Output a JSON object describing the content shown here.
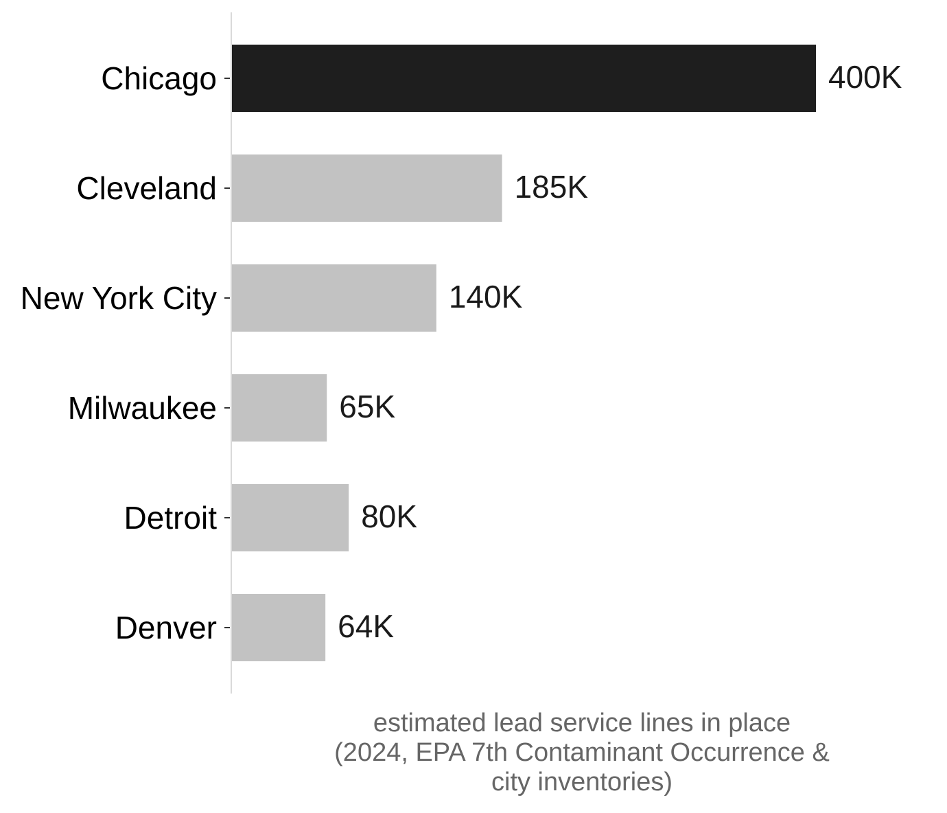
{
  "chart_data": {
    "type": "bar",
    "orientation": "horizontal",
    "categories": [
      "Chicago",
      "Cleveland",
      "New York City",
      "Milwaukee",
      "Detroit",
      "Denver"
    ],
    "values": [
      400000,
      185000,
      140000,
      65000,
      80000,
      64000
    ],
    "value_labels": [
      "400K",
      "185K",
      "140K",
      "65K",
      "80K",
      "64K"
    ],
    "highlight": "Chicago",
    "colors": {
      "highlight": "#1e1e1e",
      "default": "#c2c2c2",
      "axis_line": "#d9d9d9",
      "tick": "#333333",
      "axis_title": "#666666"
    },
    "xlabel": [
      "estimated lead service lines in place",
      "(2024, EPA 7th Contaminant Occurrence &",
      "city inventories)"
    ],
    "ylabel": "",
    "title": "",
    "xlim": [
      0,
      400000
    ],
    "grid": false,
    "legend": "none"
  }
}
